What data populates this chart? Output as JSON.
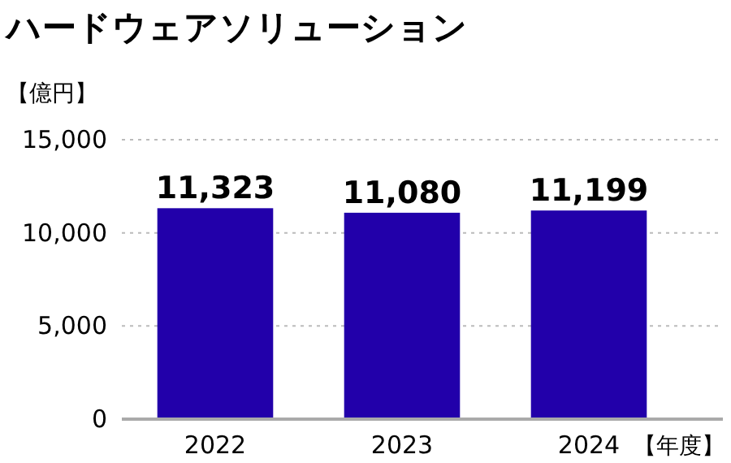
{
  "chart_data": {
    "type": "bar",
    "title": "ハードウェアソリューション",
    "ylabel": "【億円】",
    "xlabel": "【年度】",
    "categories": [
      "2022",
      "2023",
      "2024"
    ],
    "values": [
      11323,
      11080,
      11199
    ],
    "value_labels": [
      "11,323",
      "11,080",
      "11,199"
    ],
    "color": "#2200aa",
    "ylim": [
      0,
      15000
    ],
    "yticks": [
      {
        "value": 0,
        "label": "0"
      },
      {
        "value": 5000,
        "label": "5,000"
      },
      {
        "value": 10000,
        "label": "10,000"
      },
      {
        "value": 15000,
        "label": "15,000"
      }
    ],
    "grid": "y"
  }
}
